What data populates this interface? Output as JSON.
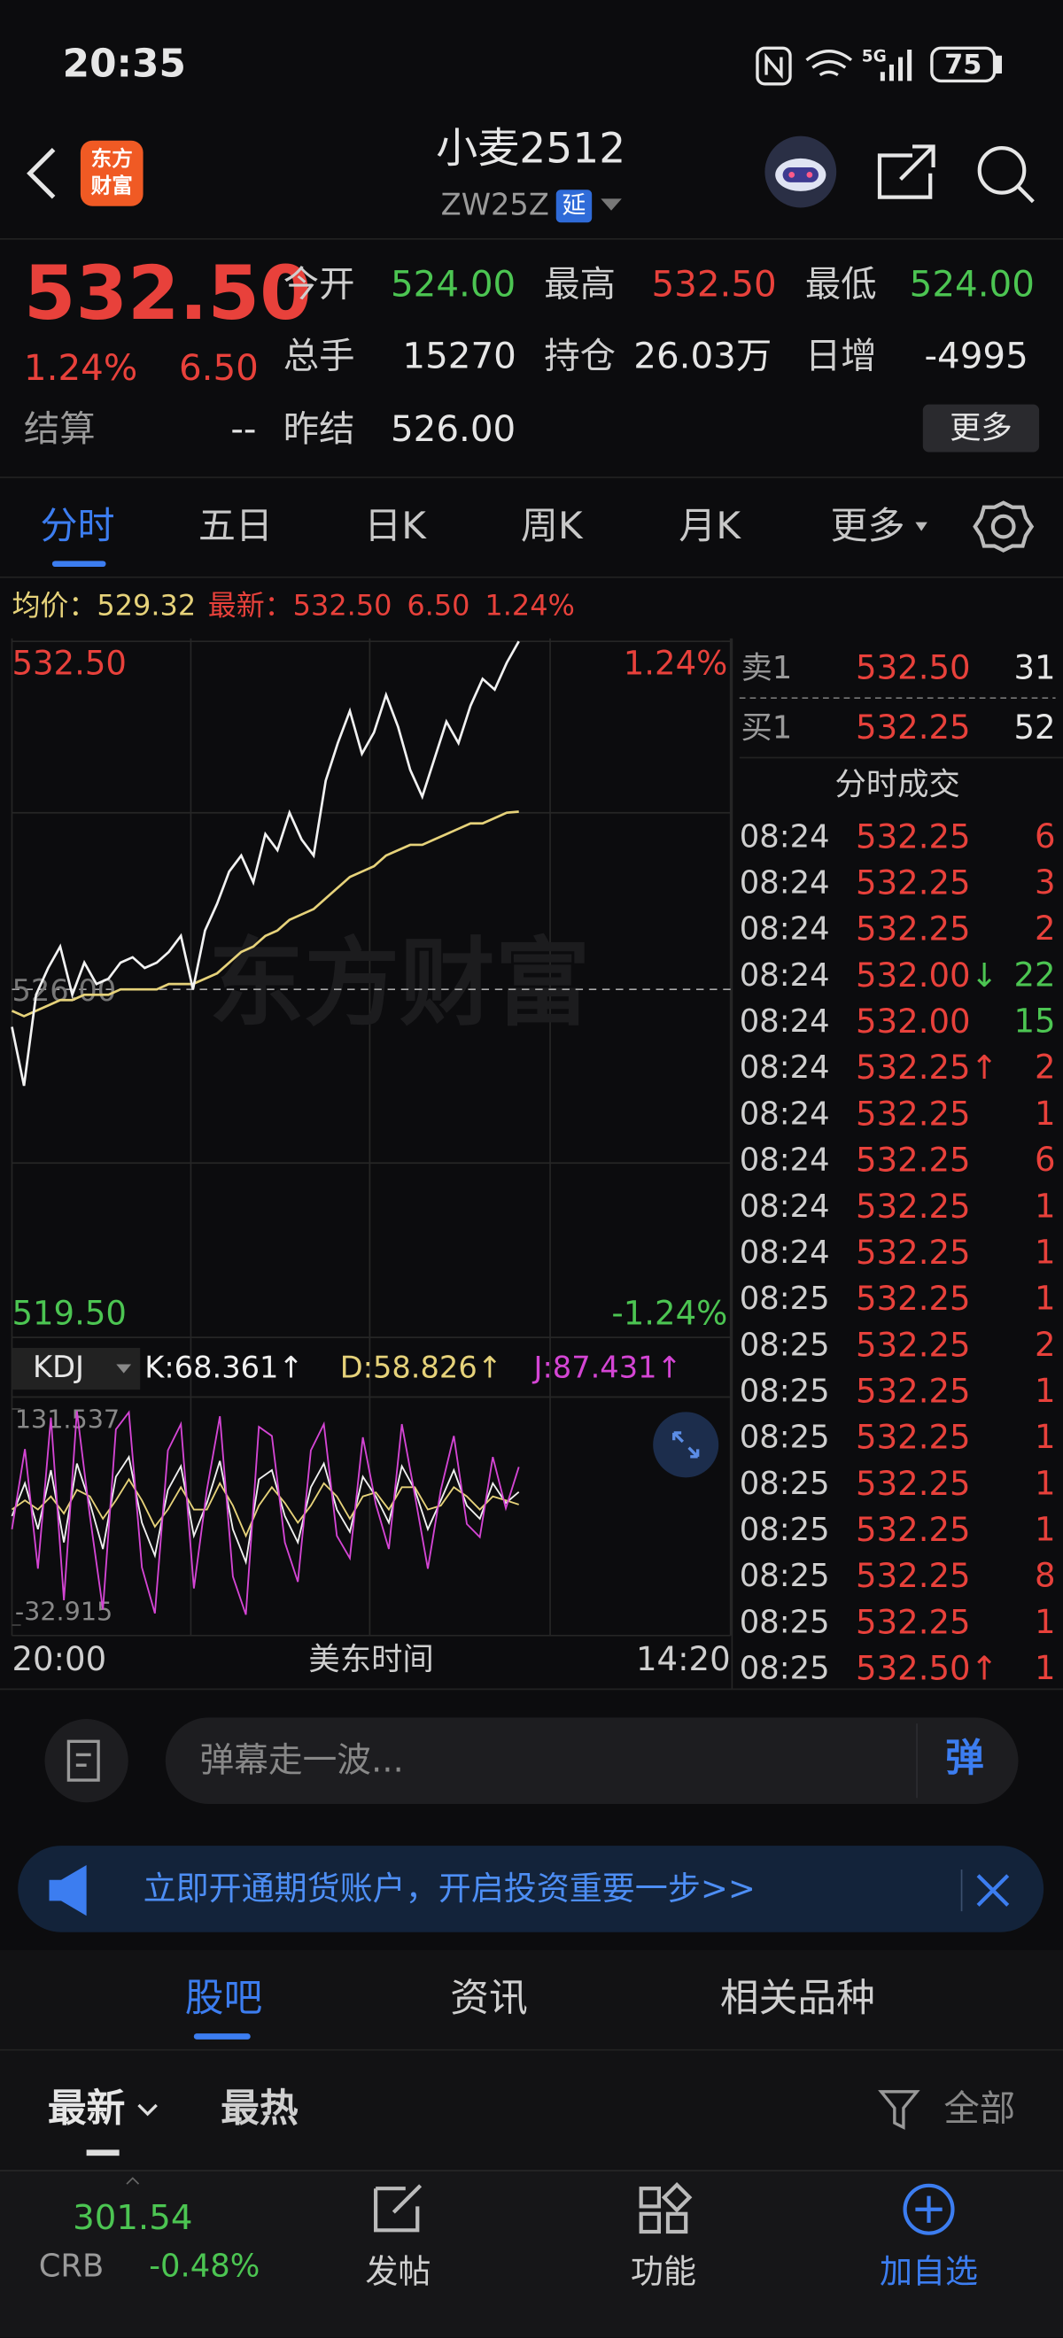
{
  "status_bar": {
    "time": "20:35",
    "network": "5G",
    "battery": "75"
  },
  "header": {
    "logo": [
      "东方",
      "财富"
    ],
    "title": "小麦2512",
    "code": "ZW25Z",
    "badge": "延"
  },
  "quote": {
    "price": "532.50",
    "change_pct": "1.24%",
    "change": "6.50",
    "settle_label": "结算",
    "settle": "--",
    "fields": [
      {
        "label": "今开",
        "value": "524.00",
        "color": "#4cc552"
      },
      {
        "label": "最高",
        "value": "532.50",
        "color": "#e8413b"
      },
      {
        "label": "最低",
        "value": "524.00",
        "color": "#4cc552"
      },
      {
        "label": "总手",
        "value": "15270"
      },
      {
        "label": "持仓",
        "value": "26.03万"
      },
      {
        "label": "日增",
        "value": "-4995"
      },
      {
        "label": "昨结",
        "value": "526.00"
      }
    ],
    "more_button": "更多"
  },
  "tabs": {
    "items": [
      "分时",
      "五日",
      "日K",
      "周K",
      "月K",
      "更多"
    ],
    "active": 0
  },
  "chart_info": {
    "avg": "529.32",
    "latest": "532.50",
    "change": "6.50",
    "change_pct": "1.24%"
  },
  "watermark": "东方财富",
  "kdj_selector": "KDJ",
  "order_book": [
    {
      "side": "卖1",
      "price": "532.50",
      "volume": "31"
    },
    {
      "side": "买1",
      "price": "532.25",
      "volume": "52"
    }
  ],
  "trades_title": "分时成交",
  "trades": [
    {
      "time": "08:24",
      "price": "532.25",
      "volume": "6"
    },
    {
      "time": "08:24",
      "price": "532.25",
      "volume": "3"
    },
    {
      "time": "08:24",
      "price": "532.25",
      "volume": "2"
    },
    {
      "time": "08:24",
      "price": "532.00",
      "arrow": "↓",
      "arrow_color": "#4cc552",
      "volume": "22",
      "volume_color": "#4cc552"
    },
    {
      "time": "08:24",
      "price": "532.00",
      "volume": "15",
      "volume_color": "#4cc552"
    },
    {
      "time": "08:24",
      "price": "532.25",
      "arrow": "↑",
      "arrow_color": "#e8413b",
      "volume": "2"
    },
    {
      "time": "08:24",
      "price": "532.25",
      "volume": "1"
    },
    {
      "time": "08:24",
      "price": "532.25",
      "volume": "6"
    },
    {
      "time": "08:24",
      "price": "532.25",
      "volume": "1"
    },
    {
      "time": "08:24",
      "price": "532.25",
      "volume": "1"
    },
    {
      "time": "08:25",
      "price": "532.25",
      "volume": "1"
    },
    {
      "time": "08:25",
      "price": "532.25",
      "volume": "2"
    },
    {
      "time": "08:25",
      "price": "532.25",
      "volume": "1"
    },
    {
      "time": "08:25",
      "price": "532.25",
      "volume": "1"
    },
    {
      "time": "08:25",
      "price": "532.25",
      "volume": "1"
    },
    {
      "time": "08:25",
      "price": "532.25",
      "volume": "1"
    },
    {
      "time": "08:25",
      "price": "532.25",
      "volume": "8"
    },
    {
      "time": "08:25",
      "price": "532.25",
      "volume": "1"
    },
    {
      "time": "08:25",
      "price": "532.50",
      "arrow": "↑",
      "arrow_color": "#e8413b",
      "volume": "1"
    }
  ],
  "comment": {
    "placeholder": "弹幕走一波...",
    "button": "弹"
  },
  "banner": "立即开通期货账户，开启投资重要一步>>",
  "section_tabs": {
    "items": [
      "股吧",
      "资讯",
      "相关品种"
    ],
    "active": 0
  },
  "filters": {
    "sort": [
      "最新",
      "最热"
    ],
    "filter": "全部"
  },
  "bottom_bar": {
    "index_value": "301.54",
    "index_name": "CRB",
    "index_change": "-0.48%",
    "actions": [
      "发帖",
      "功能",
      "加自选"
    ]
  },
  "chart_data": [
    {
      "type": "line",
      "ylim": [
        519.5,
        532.5
      ],
      "yticks": [
        {
          "value": 532.5,
          "label": "532.50"
        },
        {
          "value": 519.5,
          "label": "519.50"
        }
      ],
      "y2lim": [
        -1.24,
        1.24
      ],
      "y2ticks": [
        {
          "value": 1.24,
          "label": "1.24%"
        },
        {
          "value": -1.24,
          "label": "-1.24%"
        }
      ],
      "reference": {
        "value": 526,
        "label": "526.00"
      },
      "x_labels": [
        "20:00",
        "14:20"
      ],
      "xlabel": "美东时间",
      "grid": true,
      "series": [
        {
          "name": "均价：",
          "color": "#e6d27a",
          "values": [
            525.6,
            525.5,
            525.6,
            525.7,
            525.8,
            525.8,
            525.9,
            525.9,
            525.9,
            526.0,
            526.0,
            526.0,
            526.0,
            526.1,
            526.1,
            526.1,
            526.2,
            526.3,
            526.5,
            526.7,
            526.8,
            527.0,
            527.1,
            527.3,
            527.4,
            527.5,
            527.7,
            527.9,
            528.1,
            528.2,
            528.3,
            528.5,
            528.6,
            528.7,
            528.7,
            528.8,
            528.9,
            529.0,
            529.1,
            529.1,
            529.2,
            529.3,
            529.32
          ]
        },
        {
          "name": "最新：",
          "color": "#f2f2f2",
          "values": [
            525.3,
            524.2,
            525.9,
            526.4,
            526.8,
            525.9,
            526.5,
            526.1,
            526.2,
            526.5,
            526.6,
            526.4,
            526.5,
            526.7,
            527.0,
            526.0,
            527.1,
            527.6,
            528.2,
            528.5,
            528.0,
            528.9,
            528.6,
            529.3,
            528.8,
            528.5,
            529.9,
            530.6,
            531.2,
            530.4,
            530.8,
            531.5,
            530.9,
            530.1,
            529.6,
            530.3,
            531.0,
            530.6,
            531.3,
            531.8,
            531.6,
            532.1,
            532.5
          ]
        }
      ]
    },
    {
      "type": "line",
      "ylim": [
        -32.915,
        131.537
      ],
      "yticks": [
        {
          "value": 131.537,
          "label": "131.537"
        },
        {
          "value": -32.915,
          "label": "-32.915"
        }
      ],
      "series": [
        {
          "name": "K:",
          "value_label": "68.361↑",
          "color": "#f0f0f0",
          "values": [
            50,
            75,
            40,
            85,
            30,
            90,
            60,
            25,
            80,
            95,
            45,
            20,
            70,
            88,
            35,
            60,
            92,
            40,
            15,
            78,
            85,
            50,
            30,
            72,
            90,
            55,
            38,
            80,
            65,
            45,
            88,
            70,
            40,
            62,
            85,
            58,
            48,
            75,
            60,
            68.361
          ]
        },
        {
          "name": "D:",
          "value_label": "58.826↑",
          "color": "#e6d27a",
          "values": [
            55,
            62,
            55,
            65,
            52,
            70,
            65,
            48,
            62,
            78,
            62,
            42,
            55,
            72,
            55,
            55,
            75,
            58,
            35,
            58,
            72,
            60,
            45,
            58,
            75,
            65,
            48,
            65,
            68,
            55,
            72,
            72,
            55,
            58,
            72,
            65,
            55,
            65,
            62,
            58.826
          ]
        },
        {
          "name": "J:",
          "value_label": "87.431↑",
          "color": "#d445d4",
          "values": [
            40,
            101,
            10,
            125,
            -14,
            130,
            50,
            -21,
            116,
            129,
            11,
            -24,
            100,
            120,
            -5,
            70,
            126,
            4,
            -25,
            118,
            111,
            30,
            0,
            100,
            120,
            35,
            18,
            110,
            59,
            25,
            120,
            66,
            10,
            70,
            111,
            44,
            34,
            95,
            56,
            87.431
          ]
        }
      ]
    }
  ]
}
